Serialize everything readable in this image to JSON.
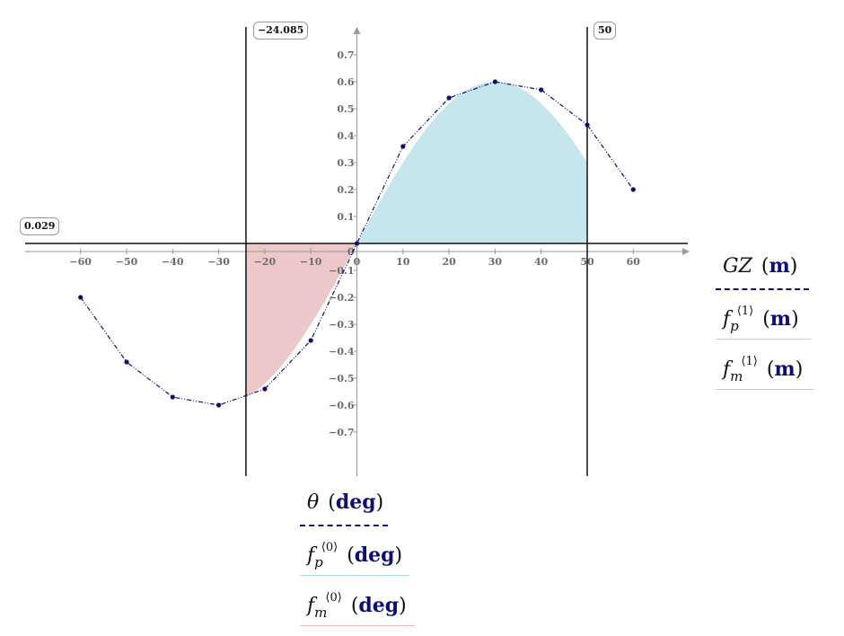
{
  "chart_data": {
    "type": "line",
    "x": [
      -60,
      -50,
      -40,
      -30,
      -20,
      -10,
      0,
      10,
      20,
      30,
      40,
      50,
      60
    ],
    "series": [
      {
        "name": "GZ",
        "values": [
          -0.2,
          -0.44,
          -0.57,
          -0.6,
          -0.54,
          -0.36,
          0,
          0.36,
          0.54,
          0.6,
          0.57,
          0.44,
          0.2
        ],
        "color": "#0d0d7a",
        "style": "dash-dot-markers"
      }
    ],
    "fills": [
      {
        "name": "f_p",
        "from": 0,
        "to": 50,
        "color": "#c4e6ec"
      },
      {
        "name": "f_m",
        "from": -24.085,
        "to": 0,
        "color": "#ecc8c8"
      }
    ],
    "xlim": [
      -70,
      70
    ],
    "ylim": [
      -0.85,
      0.8
    ],
    "x_ticks": [
      -60,
      -50,
      -40,
      -30,
      -20,
      -10,
      0,
      10,
      20,
      30,
      40,
      50,
      60
    ],
    "y_ticks": [
      -0.7,
      -0.6,
      -0.5,
      -0.4,
      -0.3,
      -0.2,
      -0.1,
      0,
      0.1,
      0.2,
      0.3,
      0.4,
      0.5,
      0.6,
      0.7
    ],
    "vertical_markers": [
      "−24.085",
      "50"
    ],
    "horizontal_marker": "0.029",
    "grid": false
  },
  "markers": {
    "vline_left_label": "−24.085",
    "vline_right_label": "50",
    "hline_label": "0.029"
  },
  "legend_y": {
    "items": [
      {
        "symbol": "GZ",
        "subscript": "",
        "superscript": "",
        "unit": "m",
        "color": "#0d0d7a"
      },
      {
        "symbol": "f",
        "subscript": "p",
        "superscript": "⟨1⟩",
        "unit": "m",
        "color": "#add8e6"
      },
      {
        "symbol": "f",
        "subscript": "m",
        "superscript": "⟨1⟩",
        "unit": "m",
        "color": "#f4b6b6"
      }
    ]
  },
  "legend_x": {
    "items": [
      {
        "symbol": "θ",
        "subscript": "",
        "superscript": "",
        "unit": "deg",
        "color": "#0d0d7a"
      },
      {
        "symbol": "f",
        "subscript": "p",
        "superscript": "⟨0⟩",
        "unit": "deg",
        "color": "#add8e6"
      },
      {
        "symbol": "f",
        "subscript": "m",
        "superscript": "⟨0⟩",
        "unit": "deg",
        "color": "#f4b6b6"
      }
    ]
  }
}
